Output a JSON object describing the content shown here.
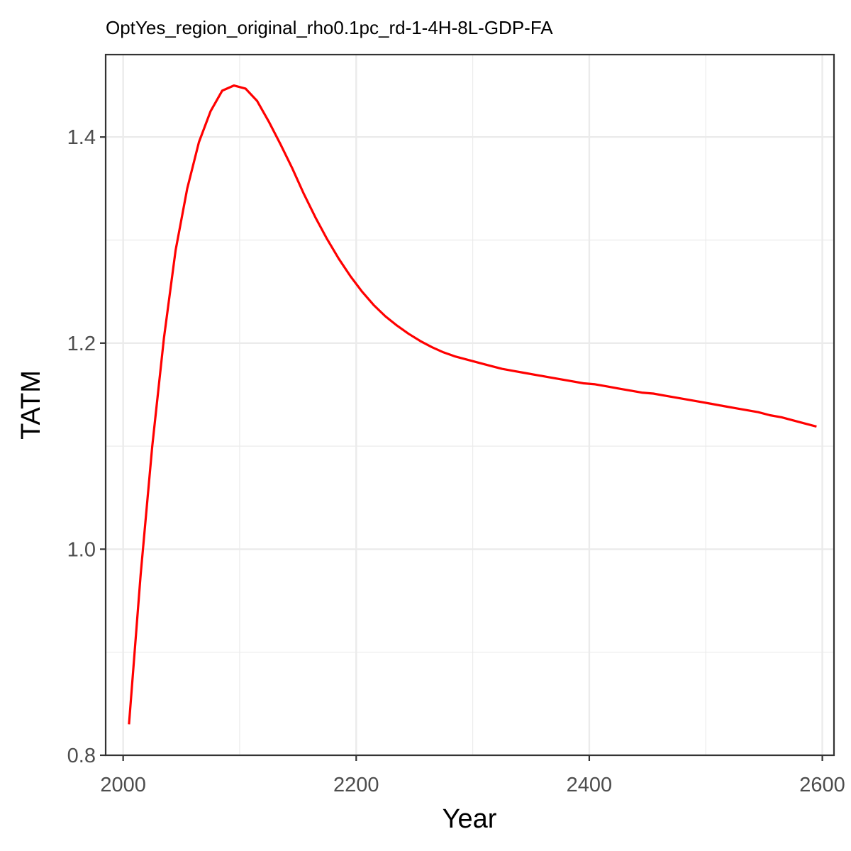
{
  "chart_data": {
    "type": "line",
    "title": "OptYes_region_original_rho0.1pc_rd-1-4H-8L-GDP-FA",
    "xlabel": "Year",
    "ylabel": "TATM",
    "xlim": [
      1985,
      2610
    ],
    "ylim": [
      0.8,
      1.48
    ],
    "x_ticks": [
      2000,
      2200,
      2400,
      2600
    ],
    "x_tick_labels": [
      "2000",
      "2200",
      "2400",
      "2600"
    ],
    "y_ticks": [
      0.8,
      1.0,
      1.2,
      1.4
    ],
    "y_tick_labels": [
      "0.8",
      "1.0",
      "1.2",
      "1.4"
    ],
    "grid": true,
    "legend": "none",
    "series": [
      {
        "color": "#ff0000",
        "x": [
          2005,
          2015,
          2025,
          2035,
          2045,
          2055,
          2065,
          2075,
          2085,
          2095,
          2105,
          2115,
          2125,
          2135,
          2145,
          2155,
          2165,
          2175,
          2185,
          2195,
          2205,
          2215,
          2225,
          2235,
          2245,
          2255,
          2265,
          2275,
          2285,
          2295,
          2305,
          2315,
          2325,
          2335,
          2345,
          2355,
          2365,
          2375,
          2385,
          2395,
          2405,
          2415,
          2425,
          2435,
          2445,
          2455,
          2465,
          2475,
          2485,
          2495,
          2505,
          2515,
          2525,
          2535,
          2545,
          2555,
          2565,
          2575,
          2585,
          2595
        ],
        "y": [
          0.83,
          0.975,
          1.1,
          1.205,
          1.29,
          1.35,
          1.395,
          1.425,
          1.445,
          1.45,
          1.447,
          1.435,
          1.415,
          1.393,
          1.37,
          1.345,
          1.322,
          1.301,
          1.282,
          1.265,
          1.25,
          1.237,
          1.226,
          1.217,
          1.209,
          1.202,
          1.196,
          1.191,
          1.187,
          1.184,
          1.181,
          1.178,
          1.175,
          1.173,
          1.171,
          1.169,
          1.167,
          1.165,
          1.163,
          1.161,
          1.16,
          1.158,
          1.156,
          1.154,
          1.152,
          1.151,
          1.149,
          1.147,
          1.145,
          1.143,
          1.141,
          1.139,
          1.137,
          1.135,
          1.133,
          1.13,
          1.128,
          1.125,
          1.122,
          1.119
        ]
      }
    ]
  }
}
